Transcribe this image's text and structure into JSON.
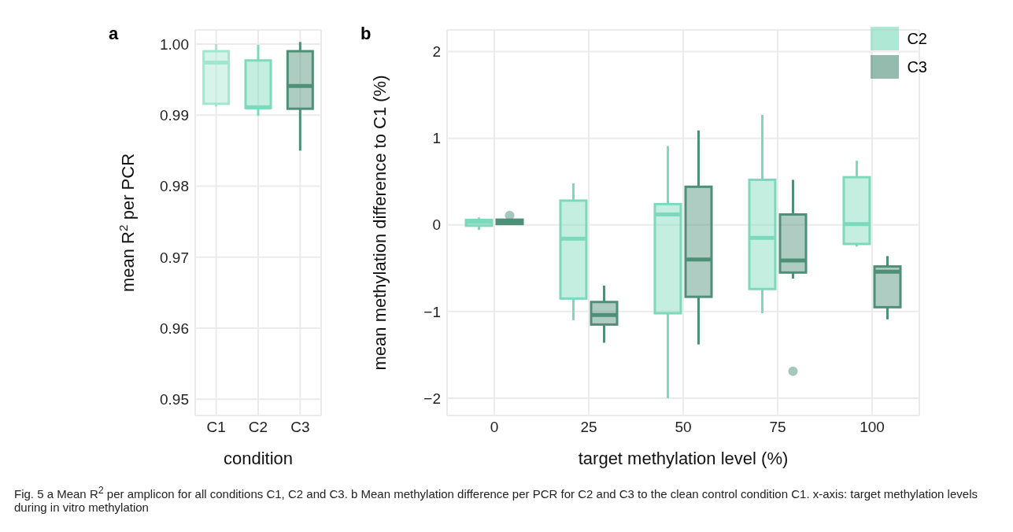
{
  "chart_data": [
    {
      "type": "box",
      "title": "a",
      "xlabel": "condition",
      "ylabel": "mean R$^{2}$ per PCR",
      "categories": [
        "C1",
        "C2",
        "C3"
      ],
      "colors": [
        "#a3e6cf",
        "#7dd9bb",
        "#4e8f78"
      ],
      "boxes": [
        {
          "low": 0.9912,
          "q1": 0.9916,
          "median": 0.9974,
          "q3": 0.999,
          "high": 1.0
        },
        {
          "low": 0.9899,
          "q1": 0.991,
          "median": 0.9911,
          "q3": 0.9977,
          "high": 0.9999
        },
        {
          "low": 0.985,
          "q1": 0.9909,
          "median": 0.9941,
          "q3": 0.999,
          "high": 1.0003
        }
      ],
      "ylim": [
        0.9477,
        1.002
      ],
      "yticks": [
        0.95,
        0.96,
        0.97,
        0.98,
        0.99,
        {
          "value": 1,
          "label": "1.00"
        }
      ],
      "grid": true,
      "annotations": [
        "Fig. 5 a Mean R$^{2}$ per amplicon for all conditions C1, C2 and C3. b Mean methylation difference per PCR for C2 and C3 to the clean control condition C1. x-axis: target methylation levels during in vitro methylation"
      ]
    },
    {
      "type": "box",
      "title": "b",
      "xlabel": "target methylation level (%)",
      "ylabel": "mean methylation difference to C1 (%)",
      "categories": [
        "0",
        "25",
        "50",
        "75",
        "100"
      ],
      "series": [
        {
          "name": "C2",
          "color": "#7dd9bb",
          "boxes": [
            {
              "low": -0.058,
              "q1": -0.01,
              "median": 0.034,
              "q3": 0.058,
              "high": 0.085
            },
            {
              "low": -1.1,
              "q1": -0.85,
              "median": -0.16,
              "q3": 0.28,
              "high": 0.48
            },
            {
              "low": -2.0,
              "q1": -1.02,
              "median": 0.12,
              "q3": 0.24,
              "high": 0.91
            },
            {
              "low": -1.02,
              "q1": -0.74,
              "median": -0.15,
              "q3": 0.52,
              "high": 1.27
            },
            {
              "low": -0.25,
              "q1": -0.22,
              "median": 0.01,
              "q3": 0.55,
              "high": 0.74
            }
          ]
        },
        {
          "name": "C3",
          "color": "#4e8f78",
          "boxes": [
            {
              "low": 0.0,
              "q1": 0.01,
              "median": 0.03,
              "q3": 0.06,
              "high": 0.06,
              "outliers": [
                0.11
              ]
            },
            {
              "low": -1.36,
              "q1": -1.15,
              "median": -1.04,
              "q3": -0.89,
              "high": -0.7
            },
            {
              "low": -1.38,
              "q1": -0.83,
              "median": -0.4,
              "q3": 0.44,
              "high": 1.09
            },
            {
              "low": -0.62,
              "q1": -0.55,
              "median": -0.41,
              "q3": 0.12,
              "high": 0.52,
              "outliers": [
                -1.69
              ]
            },
            {
              "low": -1.09,
              "q1": -0.95,
              "median": -0.54,
              "q3": -0.48,
              "high": -0.36
            }
          ]
        }
      ],
      "ylim": [
        -2.2,
        2.25
      ],
      "yticks": [
        {
          "value": -2,
          "label": "−2"
        },
        {
          "value": -1,
          "label": "−1"
        },
        0,
        1,
        2
      ],
      "grid": true,
      "legend": "top right"
    }
  ]
}
